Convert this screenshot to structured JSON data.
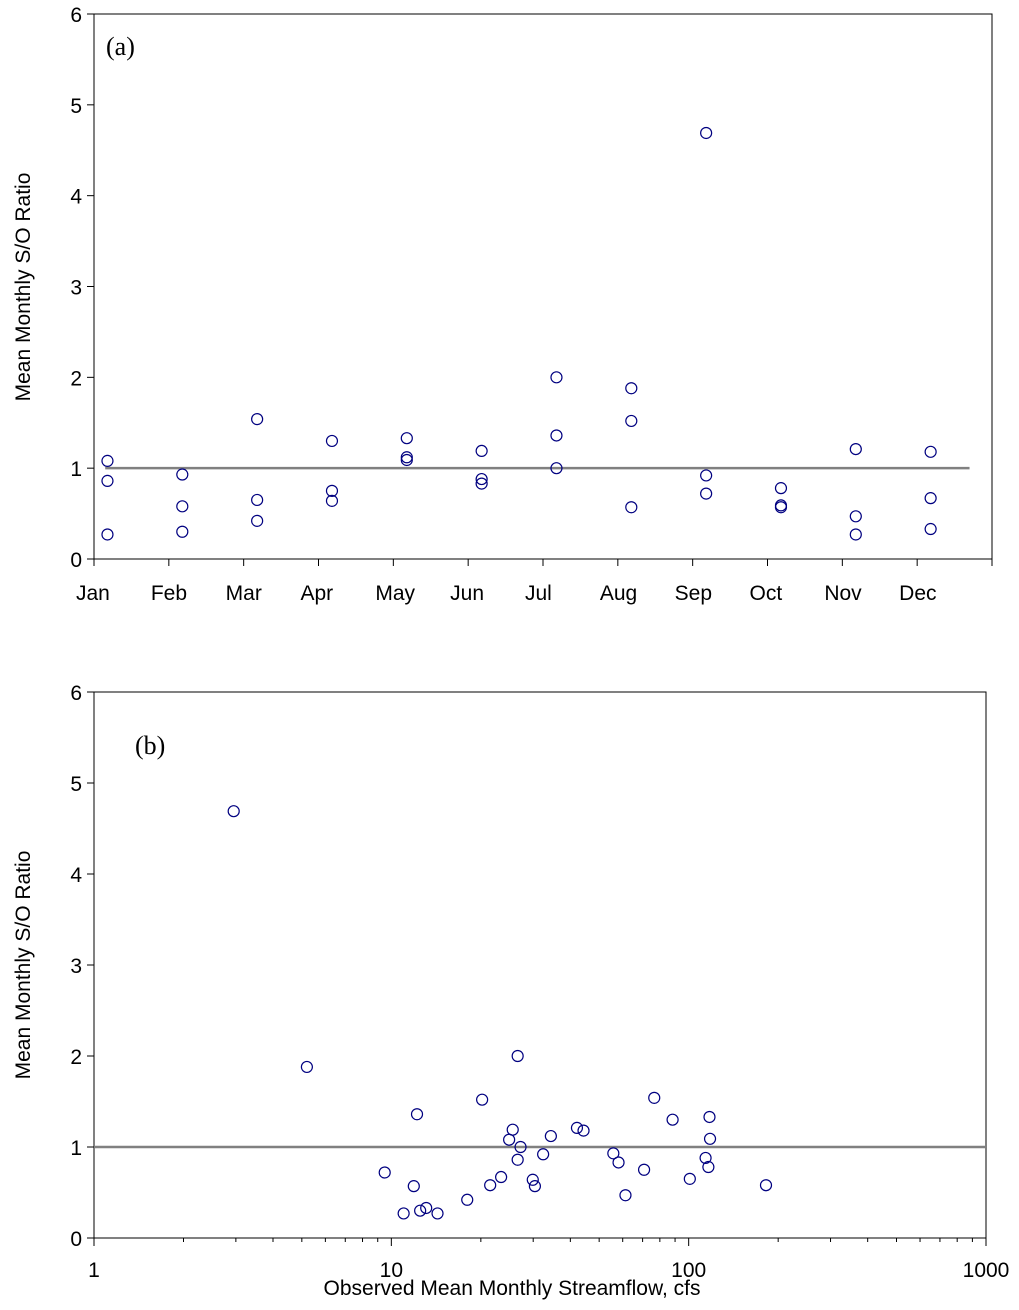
{
  "chart_data": [
    {
      "type": "scatter",
      "panel_label": "(a)",
      "xlabel": "",
      "ylabel": "Mean Monthly S/O Ratio",
      "x_categories": [
        "Jan",
        "Feb",
        "Mar",
        "Apr",
        "May",
        "Jun",
        "Jul",
        "Aug",
        "Sep",
        "Oct",
        "Nov",
        "Dec"
      ],
      "ylim": [
        0,
        6
      ],
      "yticks": [
        0,
        1,
        2,
        3,
        4,
        5,
        6
      ],
      "reference_line": 1,
      "grid": false,
      "legend": "none",
      "points": [
        {
          "month": "Jan",
          "y": 1.08
        },
        {
          "month": "Jan",
          "y": 0.86
        },
        {
          "month": "Jan",
          "y": 0.27
        },
        {
          "month": "Feb",
          "y": 0.93
        },
        {
          "month": "Feb",
          "y": 0.58
        },
        {
          "month": "Feb",
          "y": 0.3
        },
        {
          "month": "Mar",
          "y": 1.54
        },
        {
          "month": "Mar",
          "y": 0.65
        },
        {
          "month": "Mar",
          "y": 0.42
        },
        {
          "month": "Apr",
          "y": 1.3
        },
        {
          "month": "Apr",
          "y": 0.75
        },
        {
          "month": "Apr",
          "y": 0.64
        },
        {
          "month": "May",
          "y": 1.33
        },
        {
          "month": "May",
          "y": 1.12
        },
        {
          "month": "May",
          "y": 1.09
        },
        {
          "month": "Jun",
          "y": 1.19
        },
        {
          "month": "Jun",
          "y": 0.88
        },
        {
          "month": "Jun",
          "y": 0.83
        },
        {
          "month": "Jul",
          "y": 2.0
        },
        {
          "month": "Jul",
          "y": 1.36
        },
        {
          "month": "Jul",
          "y": 1.0
        },
        {
          "month": "Aug",
          "y": 1.88
        },
        {
          "month": "Aug",
          "y": 1.52
        },
        {
          "month": "Aug",
          "y": 0.57
        },
        {
          "month": "Sep",
          "y": 4.69
        },
        {
          "month": "Sep",
          "y": 0.92
        },
        {
          "month": "Sep",
          "y": 0.72
        },
        {
          "month": "Oct",
          "y": 0.78
        },
        {
          "month": "Oct",
          "y": 0.59
        },
        {
          "month": "Oct",
          "y": 0.57
        },
        {
          "month": "Nov",
          "y": 1.21
        },
        {
          "month": "Nov",
          "y": 0.47
        },
        {
          "month": "Nov",
          "y": 0.27
        },
        {
          "month": "Dec",
          "y": 1.18
        },
        {
          "month": "Dec",
          "y": 0.67
        },
        {
          "month": "Dec",
          "y": 0.33
        }
      ]
    },
    {
      "type": "scatter",
      "panel_label": "(b)",
      "xlabel": "Observed Mean Monthly Streamflow, cfs",
      "ylabel": "Mean Monthly S/O Ratio",
      "x_scale": "log",
      "xlim": [
        1,
        1000
      ],
      "xticks": [
        1,
        10,
        100,
        1000
      ],
      "ylim": [
        0,
        6
      ],
      "yticks": [
        0,
        1,
        2,
        3,
        4,
        5,
        6
      ],
      "reference_line": 1,
      "grid": false,
      "legend": "none",
      "points": [
        {
          "x": 2.95,
          "y": 4.69
        },
        {
          "x": 5.2,
          "y": 1.88
        },
        {
          "x": 9.5,
          "y": 0.72
        },
        {
          "x": 11.0,
          "y": 0.27
        },
        {
          "x": 11.9,
          "y": 0.57
        },
        {
          "x": 12.2,
          "y": 1.36
        },
        {
          "x": 12.5,
          "y": 0.3
        },
        {
          "x": 13.1,
          "y": 0.33
        },
        {
          "x": 14.3,
          "y": 0.27
        },
        {
          "x": 18.0,
          "y": 0.42
        },
        {
          "x": 20.2,
          "y": 1.52
        },
        {
          "x": 21.5,
          "y": 0.58
        },
        {
          "x": 23.4,
          "y": 0.67
        },
        {
          "x": 24.9,
          "y": 1.08
        },
        {
          "x": 25.6,
          "y": 1.19
        },
        {
          "x": 26.6,
          "y": 2.0
        },
        {
          "x": 26.6,
          "y": 0.86
        },
        {
          "x": 27.2,
          "y": 1.0
        },
        {
          "x": 29.9,
          "y": 0.64
        },
        {
          "x": 30.4,
          "y": 0.57
        },
        {
          "x": 32.4,
          "y": 0.92
        },
        {
          "x": 34.4,
          "y": 1.12
        },
        {
          "x": 42.1,
          "y": 1.21
        },
        {
          "x": 44.3,
          "y": 1.18
        },
        {
          "x": 55.8,
          "y": 0.93
        },
        {
          "x": 58.1,
          "y": 0.83
        },
        {
          "x": 61.3,
          "y": 0.47
        },
        {
          "x": 70.8,
          "y": 0.75
        },
        {
          "x": 76.6,
          "y": 1.54
        },
        {
          "x": 88.3,
          "y": 1.3
        },
        {
          "x": 100.9,
          "y": 0.65
        },
        {
          "x": 114.0,
          "y": 0.88
        },
        {
          "x": 116.5,
          "y": 0.78
        },
        {
          "x": 117.5,
          "y": 1.33
        },
        {
          "x": 118.0,
          "y": 1.09
        },
        {
          "x": 182.0,
          "y": 0.58
        }
      ]
    }
  ],
  "colors": {
    "marker": "#000080",
    "reference_line": "#808080",
    "axis": "#000000"
  }
}
